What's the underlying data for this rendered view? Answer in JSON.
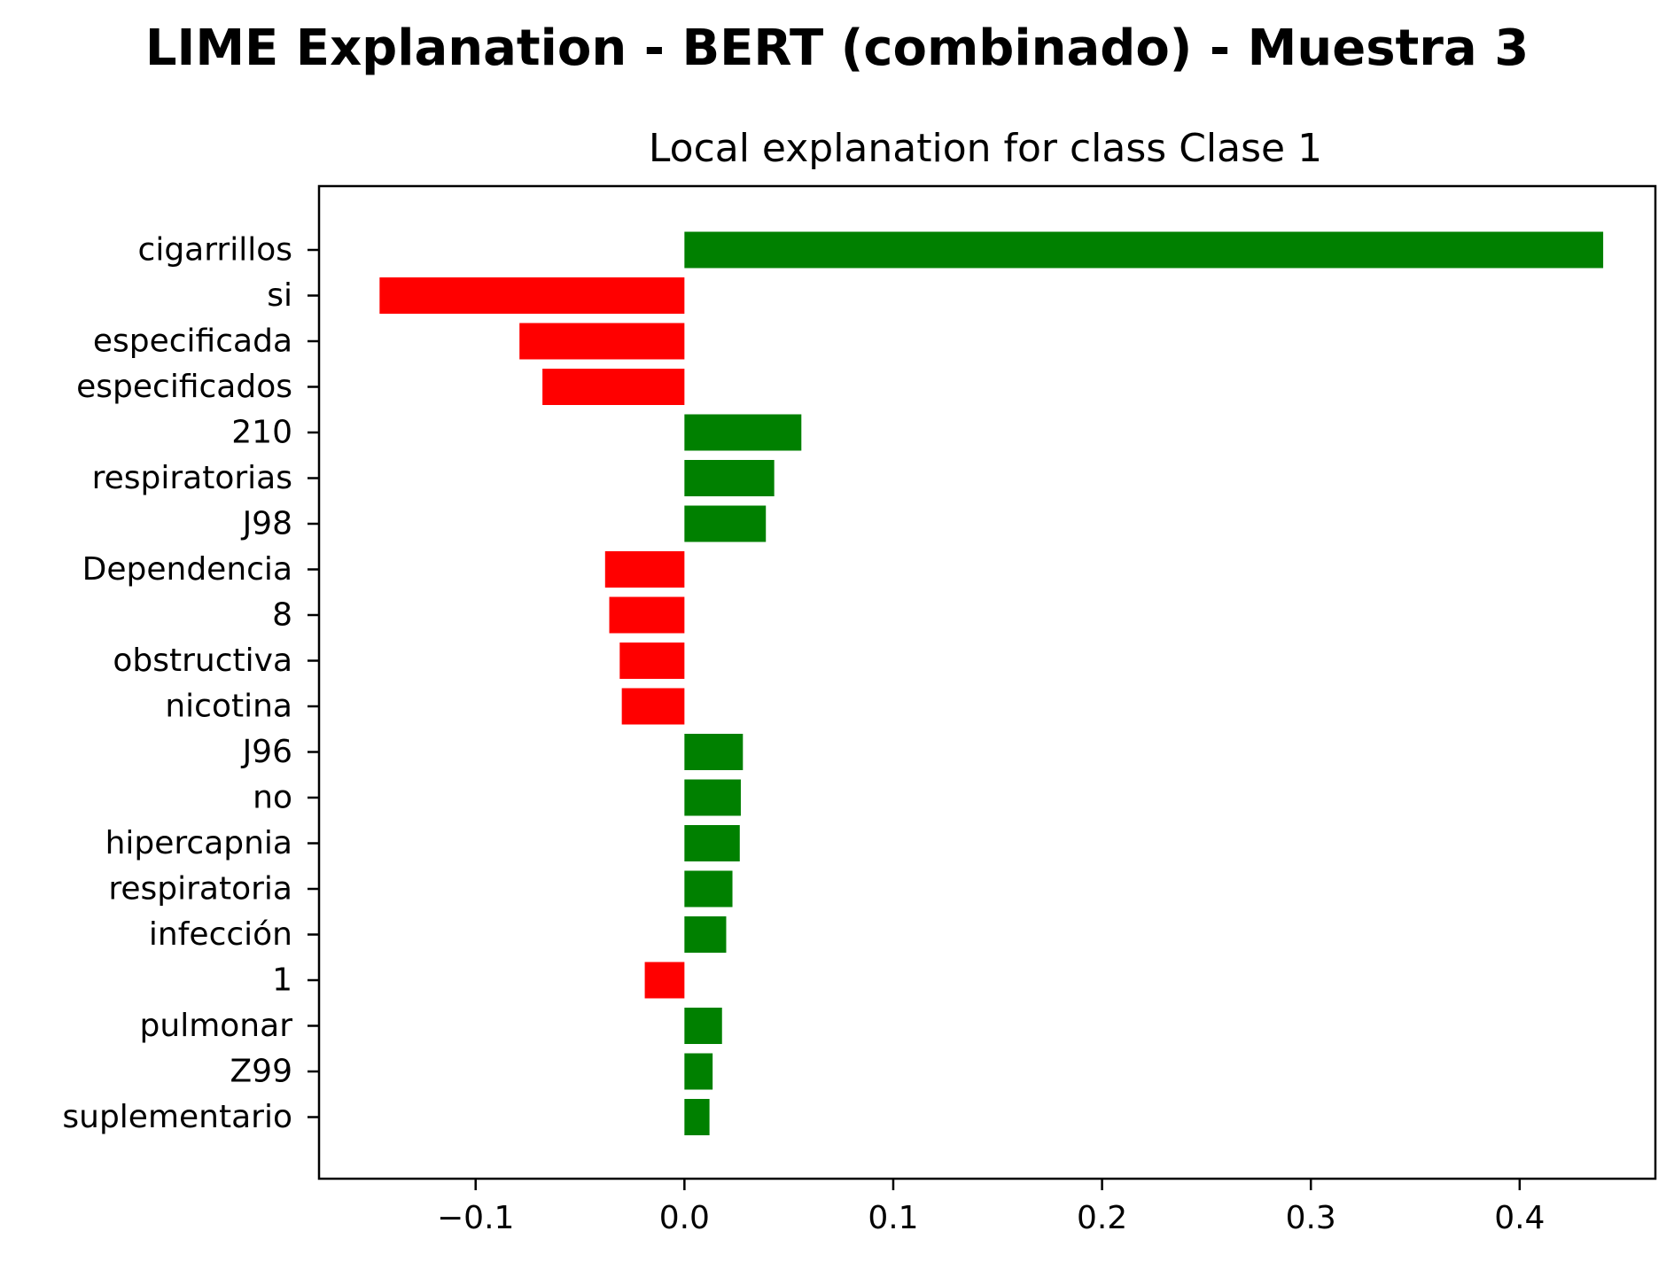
{
  "figure": {
    "suptitle": "LIME Explanation - BERT (combinado) - Muestra 3"
  },
  "chart_data": {
    "type": "bar",
    "orientation": "horizontal",
    "title": "Local explanation for class Clase 1",
    "xlabel": "",
    "ylabel": "",
    "xlim": [
      -0.175,
      0.465
    ],
    "xticks": [
      -0.1,
      0.0,
      0.1,
      0.2,
      0.3,
      0.4
    ],
    "xtick_labels": [
      "−0.1",
      "0.0",
      "0.1",
      "0.2",
      "0.3",
      "0.4"
    ],
    "categories": [
      "cigarrillos",
      "si",
      "especificada",
      "especificados",
      "210",
      "respiratorias",
      "J98",
      "Dependencia",
      "8",
      "obstructiva",
      "nicotina",
      "J96",
      "no",
      "hipercapnia",
      "respiratoria",
      "infección",
      "1",
      "pulmonar",
      "Z99",
      "suplementario"
    ],
    "values": [
      0.44,
      -0.146,
      -0.079,
      -0.068,
      0.056,
      0.043,
      0.039,
      -0.038,
      -0.036,
      -0.031,
      -0.03,
      0.028,
      0.027,
      0.0265,
      0.023,
      0.02,
      -0.019,
      0.018,
      0.0135,
      0.012
    ],
    "colors": {
      "positive": "#008000",
      "negative": "#ff0000",
      "axis": "#000000"
    },
    "grid": false,
    "legend": "none"
  }
}
